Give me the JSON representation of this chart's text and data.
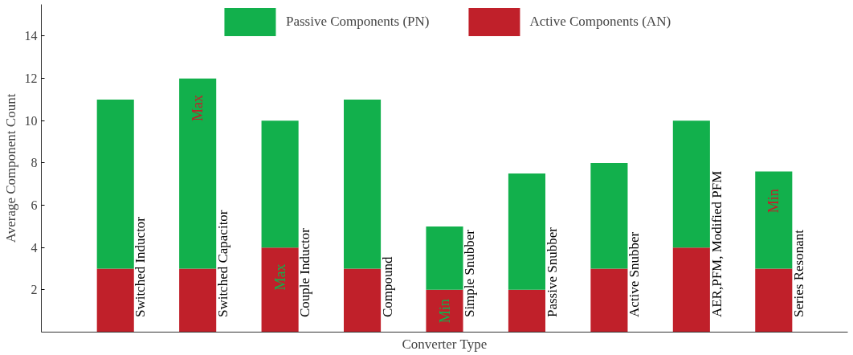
{
  "chart_data": {
    "type": "bar",
    "stacked": true,
    "xlabel": "Converter Type",
    "ylabel": "Average Component Count",
    "categories": [
      "Switched Inductor",
      "Switched Capacitor",
      "Couple Inductor",
      "Compound",
      "Simple Snubber",
      "Passive Snubber",
      "Active Snubber",
      "AER,PFM, Modified PFM",
      "Series Resonant"
    ],
    "series": [
      {
        "name": "Active Components (AN)",
        "color": "#c0202a",
        "values": [
          3,
          3,
          4,
          3,
          2,
          2,
          3,
          4,
          3
        ],
        "value_labels": [
          null,
          null,
          "Max",
          null,
          "Min",
          null,
          null,
          null,
          null
        ]
      },
      {
        "name": "Passive Components (PN)",
        "color": "#12b04c",
        "values": [
          8,
          9,
          6,
          8,
          3,
          5.5,
          5,
          6,
          4.6
        ],
        "value_labels": [
          null,
          "Max",
          null,
          null,
          null,
          null,
          null,
          null,
          "Min"
        ]
      }
    ],
    "ylim": [
      0,
      15.5
    ],
    "yticks": [
      2,
      4,
      6,
      8,
      10,
      12,
      14
    ],
    "grid": false,
    "legend": "top"
  }
}
